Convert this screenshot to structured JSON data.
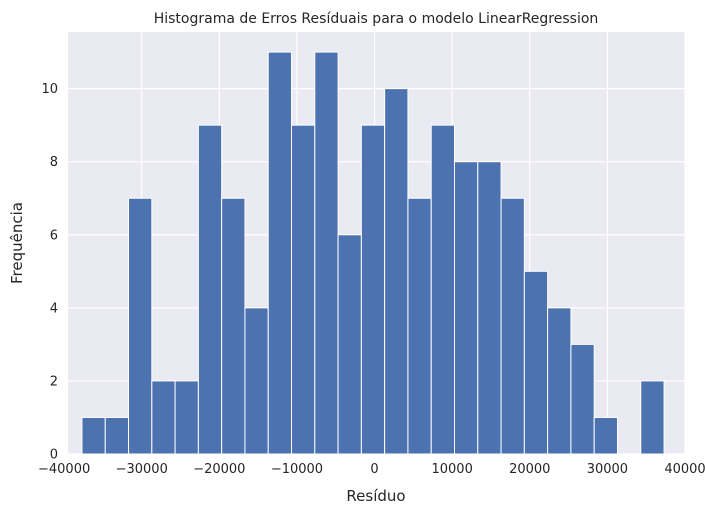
{
  "chart_data": {
    "type": "bar",
    "title": "Histograma de Erros Resíduais para o modelo LinearRegression",
    "xlabel": "Resíduo",
    "ylabel": "Frequência",
    "xlim": [
      -39500,
      40000
    ],
    "ylim": [
      0,
      11.55
    ],
    "grid": true,
    "x_ticks": [
      -40000,
      -30000,
      -20000,
      -10000,
      0,
      10000,
      20000,
      30000,
      40000
    ],
    "x_tick_labels": [
      "−40000",
      "−30000",
      "−20000",
      "−10000",
      "0",
      "10000",
      "20000",
      "30000",
      "40000"
    ],
    "y_ticks": [
      0,
      2,
      4,
      6,
      8,
      10
    ],
    "y_tick_labels": [
      "0",
      "2",
      "4",
      "6",
      "8",
      "10"
    ],
    "bin_edges": [
      -37700,
      -34700,
      -31700,
      -28700,
      -25700,
      -22700,
      -19700,
      -16700,
      -13700,
      -10700,
      -7700,
      -4700,
      -1700,
      1300,
      4300,
      7300,
      10300,
      13300,
      16300,
      19300,
      22300,
      25300,
      28300,
      31300,
      34300,
      37300
    ],
    "values": [
      1,
      1,
      7,
      2,
      2,
      9,
      7,
      4,
      11,
      9,
      11,
      6,
      9,
      10,
      7,
      9,
      8,
      8,
      7,
      5,
      4,
      3,
      1,
      0,
      2
    ],
    "colors": {
      "bar": "#4c72b0",
      "bar_edge": "#ffffff",
      "plot_bg": "#eaeaf2",
      "grid": "#ffffff",
      "text": "#262626"
    }
  }
}
